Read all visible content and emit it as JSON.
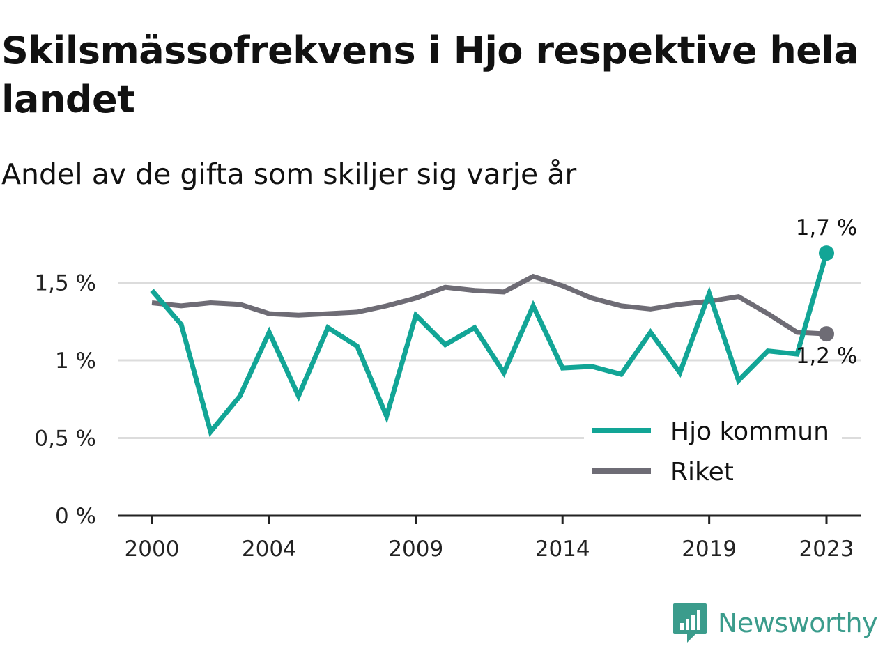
{
  "title": "Skilsmässofrekvens i Hjo respektive hela landet",
  "subtitle": "Andel av de gifta som skiljer sig varje år",
  "brand": {
    "name": "Newsworthy",
    "icon": "newsworthy-logo-icon",
    "color": "#3b9c8c"
  },
  "chart_data": {
    "type": "line",
    "title": "Skilsmässofrekvens i Hjo respektive hela landet",
    "subtitle": "Andel av de gifta som skiljer sig varje år",
    "x": [
      2000,
      2001,
      2002,
      2003,
      2004,
      2005,
      2006,
      2007,
      2008,
      2009,
      2010,
      2011,
      2012,
      2013,
      2014,
      2015,
      2016,
      2017,
      2018,
      2019,
      2020,
      2021,
      2022,
      2023
    ],
    "x_ticks": [
      2000,
      2004,
      2009,
      2014,
      2019,
      2023
    ],
    "x_tick_labels": [
      "2000",
      "2004",
      "2009",
      "2014",
      "2019",
      "2023"
    ],
    "y_ticks": [
      0,
      0.5,
      1,
      1.5
    ],
    "y_tick_labels": [
      "0 %",
      "0,5 %",
      "1 %",
      "1,5 %"
    ],
    "ylim": [
      0,
      1.75
    ],
    "grid": true,
    "legend_position": "bottom-right",
    "series": [
      {
        "name": "Hjo kommun",
        "color": "#12a596",
        "values": [
          1.45,
          1.23,
          0.54,
          0.77,
          1.18,
          0.77,
          1.21,
          1.09,
          0.64,
          1.29,
          1.1,
          1.21,
          0.92,
          1.35,
          0.95,
          0.96,
          0.91,
          1.18,
          0.92,
          1.43,
          0.87,
          1.06,
          1.04,
          1.69
        ],
        "end_label": "1,7 %"
      },
      {
        "name": "Riket",
        "color": "#6e6c75",
        "values": [
          1.37,
          1.35,
          1.37,
          1.36,
          1.3,
          1.29,
          1.3,
          1.31,
          1.35,
          1.4,
          1.47,
          1.45,
          1.44,
          1.54,
          1.48,
          1.4,
          1.35,
          1.33,
          1.36,
          1.38,
          1.41,
          1.3,
          1.18,
          1.17
        ],
        "end_label": "1,2 %"
      }
    ]
  }
}
